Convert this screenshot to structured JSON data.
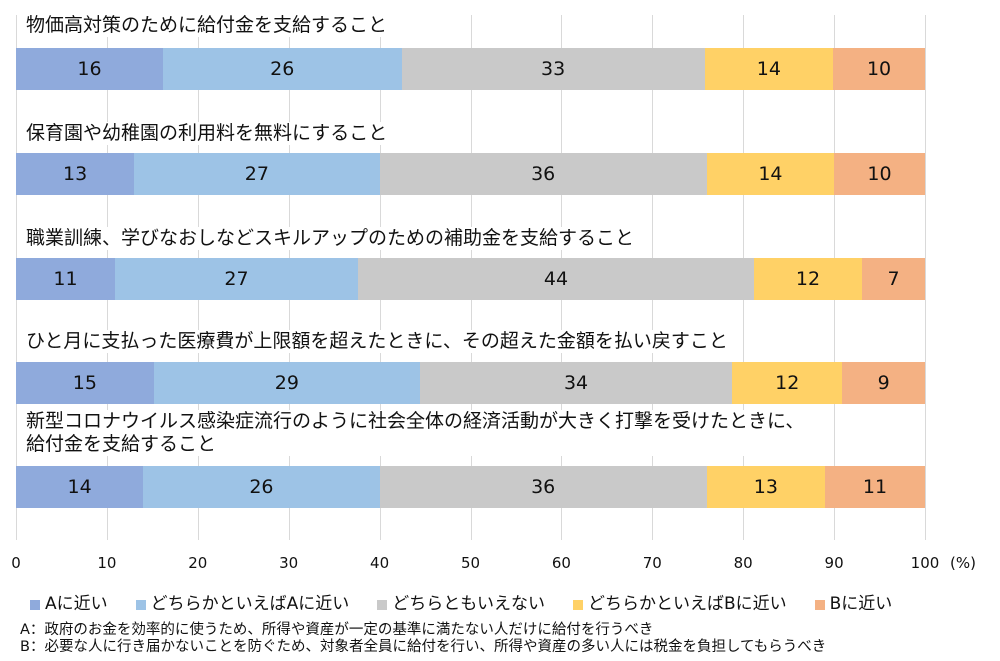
{
  "chart_data": {
    "type": "bar",
    "orientation": "horizontal",
    "stacked": true,
    "title": "",
    "xlabel": "",
    "unit_label": "(%)",
    "xlim": [
      0,
      100
    ],
    "xticks": [
      "0",
      "10",
      "20",
      "30",
      "40",
      "50",
      "60",
      "70",
      "80",
      "90",
      "100"
    ],
    "grid": true,
    "legend_position": "bottom",
    "categories": [
      "物価高対策のために給付金を支給すること",
      "保育園や幼稚園の利用料を無料にすること",
      "職業訓練、学びなおしなどスキルアップのための補助金を支給すること",
      "ひと月に支払った医療費が上限額を超えたときに、その超えた金額を払い戻すこと",
      "新型コロナウイルス感染症流行のように社会全体の経済活動が大きく打撃を受けたときに、\n給付金を支給すること"
    ],
    "series": [
      {
        "name": "Aに近い",
        "color": "#8faadc",
        "values": [
          16,
          13,
          11,
          15,
          14
        ]
      },
      {
        "name": "どちらかといえばAに近い",
        "color": "#9dc3e6",
        "values": [
          26,
          27,
          27,
          29,
          26
        ]
      },
      {
        "name": "どちらともいえない",
        "color": "#c9c9c9",
        "values": [
          33,
          36,
          44,
          34,
          36
        ]
      },
      {
        "name": "どちらかといえばBに近い",
        "color": "#ffd166",
        "values": [
          14,
          14,
          12,
          12,
          13
        ]
      },
      {
        "name": "Bに近い",
        "color": "#f4b183",
        "values": [
          10,
          10,
          7,
          9,
          11
        ]
      }
    ],
    "notes": [
      "A：政府のお金を効率的に使うため、所得や資産が一定の基準に満たない人だけに給付を行うべき",
      "B：必要な人に行き届かないことを防ぐため、対象者全員に給付を行い、所得や資産の多い人には税金を負担してもらうべき"
    ]
  }
}
